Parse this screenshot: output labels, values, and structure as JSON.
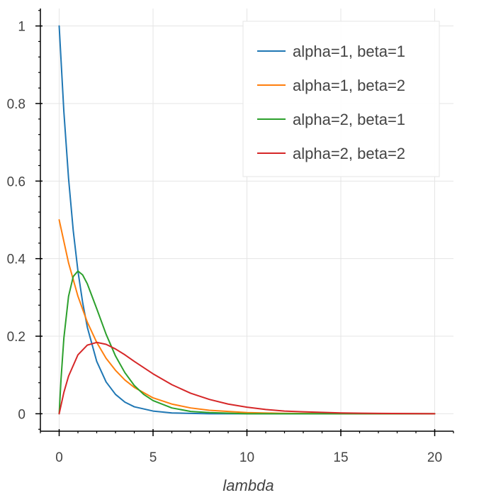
{
  "chart_data": {
    "type": "line",
    "xlabel": "lambda",
    "ylabel": "",
    "xlim": [
      -1,
      21
    ],
    "ylim": [
      -0.045,
      1.045
    ],
    "x_ticks": [
      0,
      5,
      10,
      15,
      20
    ],
    "x_tick_labels": [
      "0",
      "5",
      "10",
      "15",
      "20"
    ],
    "y_ticks": [
      0,
      0.2,
      0.4,
      0.6,
      0.8,
      1
    ],
    "y_tick_labels": [
      "0",
      "0.2",
      "0.4",
      "0.6",
      "0.8",
      "1"
    ],
    "grid": true,
    "legend_position": "top-right",
    "series": [
      {
        "name": "alpha=1, beta=1",
        "color": "#1f77b4",
        "x": [
          0,
          0.25,
          0.5,
          0.75,
          1,
          1.25,
          1.5,
          2,
          2.5,
          3,
          3.5,
          4,
          5,
          6,
          7,
          8,
          10,
          12,
          15,
          20
        ],
        "y": [
          1,
          0.779,
          0.607,
          0.472,
          0.368,
          0.287,
          0.223,
          0.135,
          0.082,
          0.05,
          0.03,
          0.018,
          0.007,
          0.002,
          0.001,
          0,
          0,
          0,
          0,
          0
        ]
      },
      {
        "name": "alpha=1, beta=2",
        "color": "#ff7f0e",
        "x": [
          0,
          0.5,
          1,
          1.5,
          2,
          2.5,
          3,
          3.5,
          4,
          5,
          6,
          7,
          8,
          9,
          10,
          12,
          15,
          20
        ],
        "y": [
          0.5,
          0.389,
          0.303,
          0.236,
          0.184,
          0.143,
          0.112,
          0.087,
          0.068,
          0.041,
          0.025,
          0.015,
          0.009,
          0.006,
          0.003,
          0.001,
          0,
          0
        ]
      },
      {
        "name": "alpha=2, beta=1",
        "color": "#2ca02c",
        "x": [
          0,
          0.1,
          0.25,
          0.5,
          0.75,
          1,
          1.25,
          1.5,
          2,
          2.5,
          3,
          3.5,
          4,
          4.5,
          5,
          6,
          7,
          8,
          10,
          12,
          15,
          20
        ],
        "y": [
          0,
          0.09,
          0.195,
          0.303,
          0.354,
          0.368,
          0.358,
          0.335,
          0.271,
          0.205,
          0.149,
          0.106,
          0.073,
          0.05,
          0.034,
          0.015,
          0.006,
          0.003,
          0,
          0,
          0,
          0
        ]
      },
      {
        "name": "alpha=2, beta=2",
        "color": "#d62728",
        "x": [
          0,
          0.25,
          0.5,
          1,
          1.5,
          2,
          2.5,
          3,
          3.5,
          4,
          5,
          6,
          7,
          8,
          9,
          10,
          11,
          12,
          13,
          15,
          17,
          20
        ],
        "y": [
          0,
          0.055,
          0.097,
          0.152,
          0.177,
          0.184,
          0.179,
          0.167,
          0.152,
          0.135,
          0.103,
          0.075,
          0.053,
          0.037,
          0.025,
          0.017,
          0.011,
          0.007,
          0.005,
          0.002,
          0.001,
          0
        ]
      }
    ]
  }
}
